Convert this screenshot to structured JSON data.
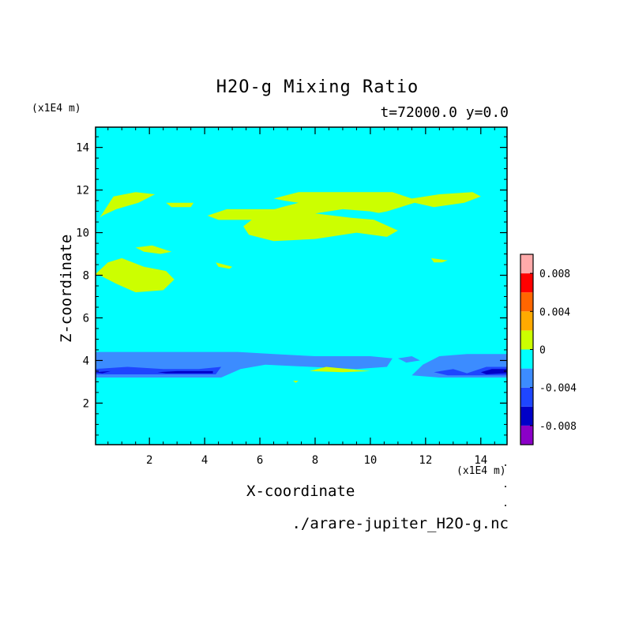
{
  "chart_data": {
    "type": "heatmap",
    "title": "H2O-g Mixing Ratio",
    "subtitle": "t=72000.0 y=0.0",
    "xlabel": "X-coordinate",
    "ylabel": "Z-coordinate",
    "x_unit": "(x1E4 m)",
    "y_unit": "(x1E4 m)",
    "xlim": [
      0.05,
      14.95
    ],
    "ylim": [
      0.05,
      14.95
    ],
    "x_ticks": [
      2,
      4,
      6,
      8,
      10,
      12,
      14
    ],
    "y_ticks": [
      2,
      4,
      6,
      8,
      10,
      12,
      14
    ],
    "grid": false,
    "colorbar": {
      "levels": [
        -0.01,
        -0.008,
        -0.006,
        -0.004,
        -0.002,
        0,
        0.002,
        0.004,
        0.006,
        0.008,
        0.01
      ],
      "colors": [
        "#8b00c8",
        "#0000c8",
        "#1e46ff",
        "#3c8cff",
        "#00ffff",
        "#ccff00",
        "#ffaa00",
        "#ff6600",
        "#ff0000",
        "#ffaaaa"
      ],
      "tick_values": [
        -0.008,
        -0.004,
        0,
        0.004,
        0.008
      ],
      "tick_labels": [
        "-0.008",
        "-0.004",
        "0",
        "0.004",
        "0.008"
      ],
      "position": "right"
    },
    "background_level_color": "#00ffff",
    "regions": [
      {
        "level_color": "#ccff00",
        "points": [
          [
            0.2,
            10.7
          ],
          [
            0.7,
            11.7
          ],
          [
            1.5,
            11.9
          ],
          [
            2.2,
            11.8
          ],
          [
            1.6,
            11.4
          ],
          [
            0.8,
            11.1
          ],
          [
            0.3,
            10.8
          ]
        ]
      },
      {
        "level_color": "#ccff00",
        "points": [
          [
            2.6,
            11.4
          ],
          [
            3.6,
            11.4
          ],
          [
            3.5,
            11.2
          ],
          [
            2.8,
            11.2
          ]
        ]
      },
      {
        "level_color": "#ccff00",
        "points": [
          [
            4.1,
            10.8
          ],
          [
            4.8,
            11.1
          ],
          [
            6.8,
            11.1
          ],
          [
            7.0,
            10.8
          ],
          [
            6.0,
            10.6
          ],
          [
            4.5,
            10.6
          ]
        ]
      },
      {
        "level_color": "#ccff00",
        "points": [
          [
            6.5,
            11.6
          ],
          [
            7.4,
            11.9
          ],
          [
            10.8,
            11.9
          ],
          [
            11.5,
            11.6
          ],
          [
            12.5,
            11.8
          ],
          [
            13.7,
            11.9
          ],
          [
            14.0,
            11.7
          ],
          [
            13.4,
            11.4
          ],
          [
            12.3,
            11.2
          ],
          [
            11.6,
            11.4
          ],
          [
            10.6,
            11.0
          ],
          [
            9.8,
            10.8
          ],
          [
            11.0,
            10.1
          ],
          [
            10.6,
            9.8
          ],
          [
            9.5,
            10.0
          ],
          [
            8.0,
            9.7
          ],
          [
            6.5,
            9.6
          ],
          [
            5.6,
            9.9
          ],
          [
            5.4,
            10.3
          ],
          [
            6.0,
            10.9
          ],
          [
            6.8,
            11.2
          ],
          [
            7.4,
            11.4
          ],
          [
            6.9,
            11.5
          ]
        ]
      },
      {
        "level_color": "#00ffff",
        "points": [
          [
            8.0,
            10.9
          ],
          [
            9.3,
            10.7
          ],
          [
            10.2,
            10.6
          ],
          [
            10.8,
            10.8
          ],
          [
            10.0,
            11.0
          ],
          [
            9.0,
            11.1
          ]
        ]
      },
      {
        "level_color": "#ccff00",
        "points": [
          [
            0.0,
            8.0
          ],
          [
            0.5,
            8.6
          ],
          [
            1.0,
            8.8
          ],
          [
            1.8,
            8.4
          ],
          [
            2.6,
            8.2
          ],
          [
            2.9,
            7.8
          ],
          [
            2.5,
            7.3
          ],
          [
            1.5,
            7.2
          ],
          [
            0.8,
            7.6
          ],
          [
            0.2,
            8.0
          ]
        ]
      },
      {
        "level_color": "#ccff00",
        "points": [
          [
            1.5,
            9.3
          ],
          [
            2.1,
            9.4
          ],
          [
            2.8,
            9.1
          ],
          [
            2.4,
            9.0
          ],
          [
            1.8,
            9.1
          ]
        ]
      },
      {
        "level_color": "#ccff00",
        "points": [
          [
            4.4,
            8.6
          ],
          [
            5.0,
            8.4
          ],
          [
            4.9,
            8.3
          ],
          [
            4.5,
            8.4
          ]
        ]
      },
      {
        "level_color": "#ccff00",
        "points": [
          [
            12.2,
            8.8
          ],
          [
            12.8,
            8.7
          ],
          [
            12.6,
            8.6
          ],
          [
            12.3,
            8.6
          ]
        ]
      },
      {
        "level_color": "#3c8cff",
        "points": [
          [
            0.0,
            4.4
          ],
          [
            5.2,
            4.4
          ],
          [
            6.5,
            4.3
          ],
          [
            8.0,
            4.2
          ],
          [
            10.0,
            4.2
          ],
          [
            10.8,
            4.1
          ],
          [
            10.6,
            3.7
          ],
          [
            9.5,
            3.6
          ],
          [
            6.2,
            3.8
          ],
          [
            5.3,
            3.6
          ],
          [
            4.6,
            3.2
          ],
          [
            0.0,
            3.2
          ]
        ]
      },
      {
        "level_color": "#3c8cff",
        "points": [
          [
            11.5,
            3.3
          ],
          [
            11.9,
            3.8
          ],
          [
            12.5,
            4.2
          ],
          [
            13.5,
            4.3
          ],
          [
            14.95,
            4.3
          ],
          [
            14.95,
            3.2
          ],
          [
            12.5,
            3.2
          ]
        ]
      },
      {
        "level_color": "#3c8cff",
        "points": [
          [
            11.0,
            4.1
          ],
          [
            11.5,
            4.2
          ],
          [
            11.8,
            4.0
          ],
          [
            11.3,
            3.9
          ]
        ]
      },
      {
        "level_color": "#1e46ff",
        "points": [
          [
            0.0,
            3.6
          ],
          [
            1.2,
            3.7
          ],
          [
            2.5,
            3.6
          ],
          [
            3.8,
            3.6
          ],
          [
            4.6,
            3.7
          ],
          [
            4.4,
            3.35
          ],
          [
            0.0,
            3.35
          ]
        ]
      },
      {
        "level_color": "#0000c8",
        "points": [
          [
            2.3,
            3.45
          ],
          [
            3.0,
            3.5
          ],
          [
            4.3,
            3.5
          ],
          [
            4.3,
            3.4
          ],
          [
            2.6,
            3.4
          ]
        ]
      },
      {
        "level_color": "#0000c8",
        "points": [
          [
            0.0,
            3.45
          ],
          [
            0.6,
            3.5
          ],
          [
            0.3,
            3.4
          ]
        ]
      },
      {
        "level_color": "#1e46ff",
        "points": [
          [
            12.3,
            3.45
          ],
          [
            13.0,
            3.6
          ],
          [
            13.5,
            3.4
          ],
          [
            14.2,
            3.7
          ],
          [
            14.95,
            3.7
          ],
          [
            14.95,
            3.3
          ],
          [
            12.8,
            3.3
          ]
        ]
      },
      {
        "level_color": "#0000c8",
        "points": [
          [
            14.0,
            3.45
          ],
          [
            14.4,
            3.6
          ],
          [
            14.95,
            3.6
          ],
          [
            14.95,
            3.4
          ],
          [
            14.2,
            3.35
          ]
        ]
      },
      {
        "level_color": "#ccff00",
        "points": [
          [
            7.8,
            3.5
          ],
          [
            8.4,
            3.7
          ],
          [
            9.2,
            3.6
          ],
          [
            10.0,
            3.5
          ],
          [
            9.0,
            3.45
          ]
        ]
      },
      {
        "level_color": "#ccff00",
        "points": [
          [
            7.2,
            3.05
          ],
          [
            7.4,
            3.05
          ],
          [
            7.3,
            2.95
          ]
        ]
      }
    ]
  }
}
